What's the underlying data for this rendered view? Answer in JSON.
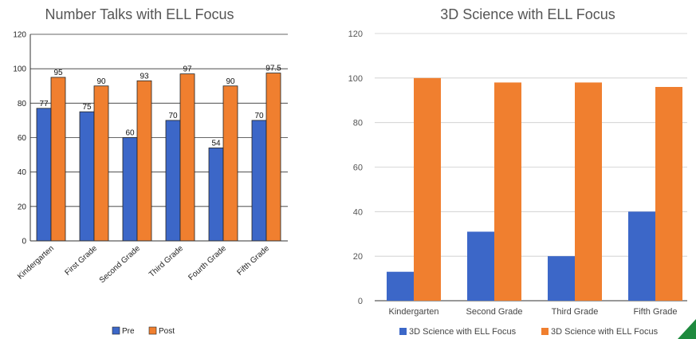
{
  "chart_data": [
    {
      "type": "bar",
      "title": "Number Talks with ELL Focus",
      "categories": [
        "Kindergarten",
        "First Grade",
        "Second Grade",
        "Third Grade",
        "Fourth Grade",
        "Fifth Grade"
      ],
      "series": [
        {
          "name": "Pre",
          "values": [
            77,
            75,
            60,
            70,
            54,
            70
          ],
          "labels": [
            "77",
            "75",
            "60",
            "70",
            "54",
            "70"
          ],
          "color": "#3c67c8"
        },
        {
          "name": "Post",
          "values": [
            95,
            90,
            93,
            97,
            90,
            97.5
          ],
          "labels": [
            "95",
            "90",
            "93",
            "97",
            "90",
            "97.5"
          ],
          "color": "#f07f2f"
        }
      ],
      "yticks": [
        "0",
        "20",
        "40",
        "60",
        "80",
        "100",
        "120"
      ],
      "ylim": [
        0,
        120
      ],
      "grid": true,
      "legend": "bottom"
    },
    {
      "type": "bar",
      "title": "3D Science with ELL Focus",
      "categories": [
        "Kindergarten",
        "Second Grade",
        "Third Grade",
        "Fifth Grade"
      ],
      "series": [
        {
          "name": "3D Science with ELL Focus",
          "values": [
            13,
            31,
            20,
            40
          ],
          "color": "#3c67c8"
        },
        {
          "name": "3D Science with ELL Focus",
          "values": [
            100,
            98,
            98,
            96
          ],
          "color": "#f07f2f"
        }
      ],
      "yticks": [
        "0",
        "20",
        "40",
        "60",
        "80",
        "100",
        "120"
      ],
      "ylim": [
        0,
        120
      ],
      "grid": true,
      "legend": "bottom"
    }
  ]
}
